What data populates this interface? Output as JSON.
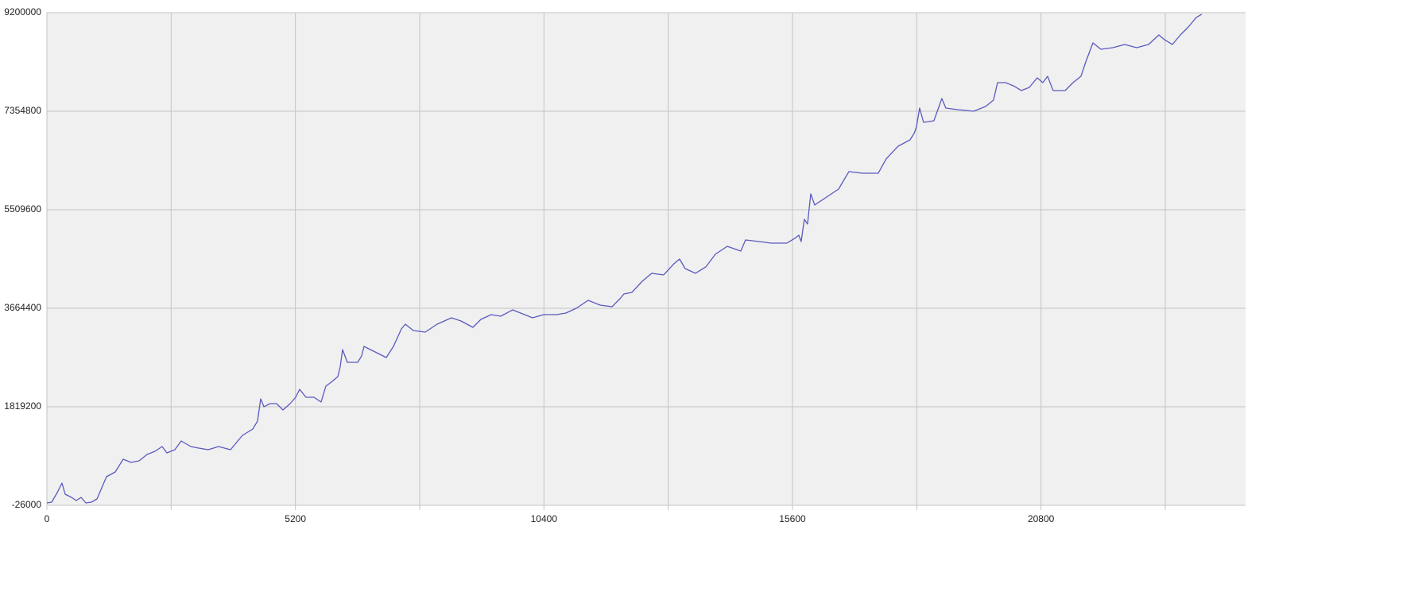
{
  "chart_data": {
    "type": "line",
    "x": [
      0,
      100,
      216,
      316,
      382,
      516,
      615,
      715,
      815,
      931,
      1048,
      1147,
      1247,
      1430,
      1596,
      1763,
      1929,
      2095,
      2262,
      2411,
      2511,
      2677,
      2810,
      3010,
      3176,
      3376,
      3592,
      3842,
      4091,
      4307,
      4407,
      4473,
      4540,
      4673,
      4806,
      4939,
      5089,
      5205,
      5288,
      5421,
      5588,
      5737,
      5837,
      5970,
      6087,
      6136,
      6186,
      6286,
      6502,
      6585,
      6635,
      6835,
      7101,
      7251,
      7417,
      7500,
      7666,
      7916,
      8165,
      8465,
      8664,
      8914,
      9080,
      9296,
      9496,
      9745,
      9995,
      10161,
      10394,
      10660,
      10859,
      11076,
      11325,
      11574,
      11824,
      11990,
      12073,
      12240,
      12456,
      12655,
      12905,
      13121,
      13237,
      13354,
      13570,
      13786,
      13986,
      14235,
      14518,
      14618,
      14900,
      15150,
      15483,
      15649,
      15732,
      15782,
      15848,
      15915,
      15982,
      16065,
      16314,
      16564,
      16780,
      17063,
      17395,
      17561,
      17811,
      18060,
      18144,
      18193,
      18260,
      18343,
      18559,
      18725,
      18809,
      19058,
      19391,
      19640,
      19806,
      19890,
      20056,
      20222,
      20389,
      20555,
      20721,
      20838,
      20938,
      21054,
      21304,
      21470,
      21636,
      21736,
      21886,
      22052,
      22302,
      22551,
      22801,
      23050,
      23266,
      23383,
      23549,
      23715,
      23882,
      24048,
      24164
    ],
    "series": [
      {
        "color": "#5a5ac0",
        "values": [
          18600,
          33500,
          212100,
          390700,
          182300,
          122800,
          63300,
          122800,
          18600,
          33500,
          93000,
          301400,
          509700,
          599000,
          837100,
          777600,
          807300,
          926400,
          985900,
          1075200,
          956100,
          1015700,
          1179400,
          1075200,
          1045400,
          1015700,
          1075200,
          1015700,
          1283500,
          1402600,
          1551400,
          1968100,
          1820200,
          1878800,
          1878800,
          1759700,
          1878800,
          1997800,
          2146600,
          1997800,
          1997800,
          1908500,
          2206200,
          2295400,
          2384700,
          2563300,
          2890700,
          2652600,
          2652600,
          2771600,
          2950200,
          2860900,
          2741900,
          2950200,
          3277600,
          3366900,
          3247800,
          3218100,
          3366900,
          3485900,
          3426400,
          3307300,
          3456200,
          3545400,
          3515700,
          3634700,
          3545400,
          3485900,
          3545400,
          3545400,
          3575200,
          3664500,
          3813300,
          3724000,
          3694300,
          3843100,
          3932300,
          3962100,
          4170400,
          4319300,
          4289500,
          4497800,
          4587100,
          4408600,
          4319300,
          4438300,
          4676400,
          4825200,
          4735900,
          4944300,
          4914500,
          4884700,
          4884700,
          4974000,
          5033500,
          4914500,
          5331000,
          5241900,
          5807400,
          5599000,
          5747800,
          5896600,
          6224000,
          6194300,
          6194300,
          6462100,
          6700200,
          6819300,
          6938300,
          7057400,
          7414500,
          7146600,
          7176400,
          7593100,
          7414500,
          7384700,
          7355000,
          7444300,
          7563300,
          7890700,
          7890700,
          7831200,
          7741900,
          7801400,
          7980000,
          7890700,
          8009700,
          7741900,
          7741900,
          7890700,
          8009700,
          8277600,
          8634700,
          8515700,
          8545400,
          8604900,
          8545400,
          8604900,
          8783500,
          8694200,
          8604900,
          8783500,
          8932300,
          9110900,
          9170400
        ]
      }
    ],
    "xlim": [
      0,
      25080
    ],
    "xticks": [
      0,
      5200,
      10400,
      15600,
      20800
    ],
    "xgrid_minor": [
      2600,
      7800,
      13000,
      18200,
      23400
    ],
    "ylim": [
      -26000,
      9200000
    ],
    "yticks": [
      -26000,
      1819200,
      3664400,
      5509600,
      7354800,
      9200000
    ],
    "grid": true,
    "background": "#f0f0f0"
  }
}
